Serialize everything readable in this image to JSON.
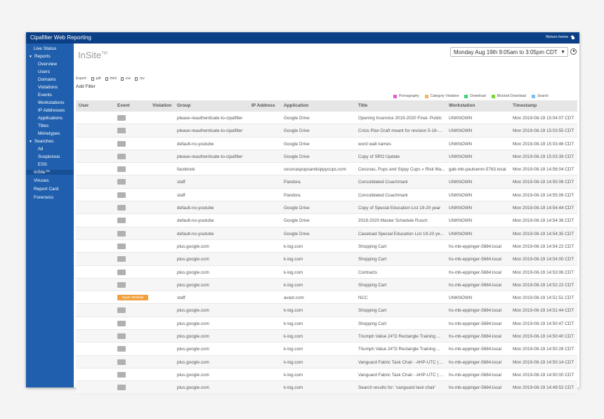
{
  "app": {
    "title": "Cipafilter Web Reporting",
    "return_home": "Return home"
  },
  "sidebar": {
    "items": [
      {
        "label": "Live Status",
        "level": 0
      },
      {
        "label": "Reports",
        "level": 0,
        "expanded": true
      },
      {
        "label": "Overview",
        "level": 1
      },
      {
        "label": "Users",
        "level": 1
      },
      {
        "label": "Domains",
        "level": 1
      },
      {
        "label": "Violations",
        "level": 1
      },
      {
        "label": "Events",
        "level": 1
      },
      {
        "label": "Workstations",
        "level": 1
      },
      {
        "label": "IP Addresses",
        "level": 1
      },
      {
        "label": "Applications",
        "level": 1
      },
      {
        "label": "Titles",
        "level": 1
      },
      {
        "label": "Mimetypes",
        "level": 1
      },
      {
        "label": "Searches",
        "level": 0,
        "expanded": true
      },
      {
        "label": "All",
        "level": 1
      },
      {
        "label": "Suspicious",
        "level": 1
      },
      {
        "label": "ESS",
        "level": 1
      },
      {
        "label": "InSite™",
        "level": 0,
        "active": true
      },
      {
        "label": "Viruses",
        "level": 0
      },
      {
        "label": "Report Card",
        "level": 0
      },
      {
        "label": "Forensics",
        "level": 0
      }
    ]
  },
  "page": {
    "title": "InSite",
    "title_mark": "TM",
    "date_range": "Monday Aug 19th 9:05am to 3:05pm CDT",
    "export_label": "Export:",
    "exports": [
      ".pdf",
      ".html",
      ".csv",
      ".tsv"
    ],
    "add_filter": "Add Filter"
  },
  "legend": [
    {
      "label": "Pornography",
      "color": "#e35bd0"
    },
    {
      "label": "Category Violation",
      "color": "#f2b35b"
    },
    {
      "label": "Download",
      "color": "#3ed17a"
    },
    {
      "label": "Blocked Download",
      "color": "#7cd63a"
    },
    {
      "label": "Search",
      "color": "#7bbcf2"
    }
  ],
  "table": {
    "columns": [
      "User",
      "Event",
      "Violation",
      "Group",
      "IP Address",
      "Application",
      "Title",
      "Workstation",
      "Timestamp"
    ],
    "rows": [
      {
        "event": "",
        "group": "please-reauthenticate-to-cipafilter",
        "application": "Google Drive",
        "title": "Opening Inservice 2019-2020 Final- Public",
        "workstation": "UNKNOWN",
        "timestamp": "Mon 2019-08-19 15:04:07 CDT"
      },
      {
        "event": "",
        "group": "please-reauthenticate-to-cipafilter",
        "application": "Google Drive",
        "title": "Crisis Plan Draft meant for revision 5-16-...",
        "workstation": "UNKNOWN",
        "timestamp": "Mon 2019-08-19 15:03:55 CDT"
      },
      {
        "event": "",
        "group": "default-no-youtube",
        "application": "Google Drive",
        "title": "word wall names",
        "workstation": "UNKNOWN",
        "timestamp": "Mon 2019-08-19 15:03:46 CDT"
      },
      {
        "event": "",
        "group": "please-reauthenticate-to-cipafilter",
        "application": "Google Drive",
        "title": "Copy of SRO Update",
        "workstation": "UNKNOWN",
        "timestamp": "Mon 2019-08-19 15:03:39 CDT"
      },
      {
        "event": "",
        "group": "facebook",
        "application": "cessnaspupsandsippycups.com",
        "title": "Cessnas, Pups and Sippy Cups » Risk Ma...",
        "workstation": "gab-mb-paulsenm-5763.local",
        "timestamp": "Mon 2019-08-19 14:56:04 CDT"
      },
      {
        "event": "",
        "group": "staff",
        "application": "Pandora",
        "title": "Consolidated Coachmark",
        "workstation": "UNKNOWN",
        "timestamp": "Mon 2019-08-19 14:55:06 CDT"
      },
      {
        "event": "",
        "group": "staff",
        "application": "Pandora",
        "title": "Consolidated Coachmark",
        "workstation": "UNKNOWN",
        "timestamp": "Mon 2019-08-19 14:55:06 CDT"
      },
      {
        "event": "",
        "group": "default-no-youtube",
        "application": "Google Drive",
        "title": "Copy of Special Education List 19-20 year",
        "workstation": "UNKNOWN",
        "timestamp": "Mon 2019-08-19 14:54:44 CDT"
      },
      {
        "event": "",
        "group": "default-no-youtube",
        "application": "Google Drive",
        "title": "2019-2020 Master Schedule Rusch",
        "workstation": "UNKNOWN",
        "timestamp": "Mon 2019-08-19 14:54:36 CDT"
      },
      {
        "event": "",
        "group": "default-no-youtube",
        "application": "Google Drive",
        "title": "Caseload Special Education List 19-20 ye...",
        "workstation": "UNKNOWN",
        "timestamp": "Mon 2019-08-19 14:54:35 CDT"
      },
      {
        "event": "",
        "group": "plus.google.com",
        "application": "k-log.com",
        "title": "Shopping Cart",
        "workstation": "hs-mb-eppinger-5684.local",
        "timestamp": "Mon 2019-08-19 14:54:22 CDT"
      },
      {
        "event": "",
        "group": "plus.google.com",
        "application": "k-log.com",
        "title": "Shopping Cart",
        "workstation": "hs-mb-eppinger-5684.local",
        "timestamp": "Mon 2019-08-19 14:54:00 CDT"
      },
      {
        "event": "",
        "group": "plus.google.com",
        "application": "k-log.com",
        "title": "Contracts",
        "workstation": "hs-mb-eppinger-5684.local",
        "timestamp": "Mon 2019-08-19 14:53:06 CDT"
      },
      {
        "event": "",
        "group": "plus.google.com",
        "application": "k-log.com",
        "title": "Shopping Cart",
        "workstation": "hs-mb-eppinger-5684.local",
        "timestamp": "Mon 2019-08-19 14:52:22 CDT"
      },
      {
        "event": "Super Whitelist",
        "highlight": true,
        "group": "staff",
        "application": "avast.com",
        "title": "NCC",
        "workstation": "UNKNOWN",
        "timestamp": "Mon 2019-08-19 14:51:51 CDT"
      },
      {
        "event": "",
        "group": "plus.google.com",
        "application": "k-log.com",
        "title": "Shopping Cart",
        "workstation": "hs-mb-eppinger-5684.local",
        "timestamp": "Mon 2019-08-19 14:51:44 CDT"
      },
      {
        "event": "",
        "group": "plus.google.com",
        "application": "k-log.com",
        "title": "Shopping Cart",
        "workstation": "hs-mb-eppinger-5684.local",
        "timestamp": "Mon 2019-08-19 14:50:47 CDT"
      },
      {
        "event": "",
        "group": "plus.google.com",
        "application": "k-log.com",
        "title": "Triumph Value 24\"D Rectangle Training ...",
        "workstation": "hs-mb-eppinger-5684.local",
        "timestamp": "Mon 2019-08-19 14:50:40 CDT"
      },
      {
        "event": "",
        "group": "plus.google.com",
        "application": "k-log.com",
        "title": "Triumph Value 24\"D Rectangle Training ...",
        "workstation": "hs-mb-eppinger-5684.local",
        "timestamp": "Mon 2019-08-19 14:50:28 CDT"
      },
      {
        "event": "",
        "group": "plus.google.com",
        "application": "k-log.com",
        "title": "Vanguard Fabric Task Chair - AHP-UTC | ...",
        "workstation": "hs-mb-eppinger-5684.local",
        "timestamp": "Mon 2019-08-19 14:50:14 CDT"
      },
      {
        "event": "",
        "group": "plus.google.com",
        "application": "k-log.com",
        "title": "Vanguard Fabric Task Chair - AHP-UTC | ...",
        "workstation": "hs-mb-eppinger-5684.local",
        "timestamp": "Mon 2019-08-19 14:50:00 CDT"
      },
      {
        "event": "",
        "group": "plus.google.com",
        "application": "k-log.com",
        "title": "Search results for: 'vanguard task chair'",
        "workstation": "hs-mb-eppinger-5684.local",
        "timestamp": "Mon 2019-08-19 14:49:52 CDT"
      }
    ]
  }
}
